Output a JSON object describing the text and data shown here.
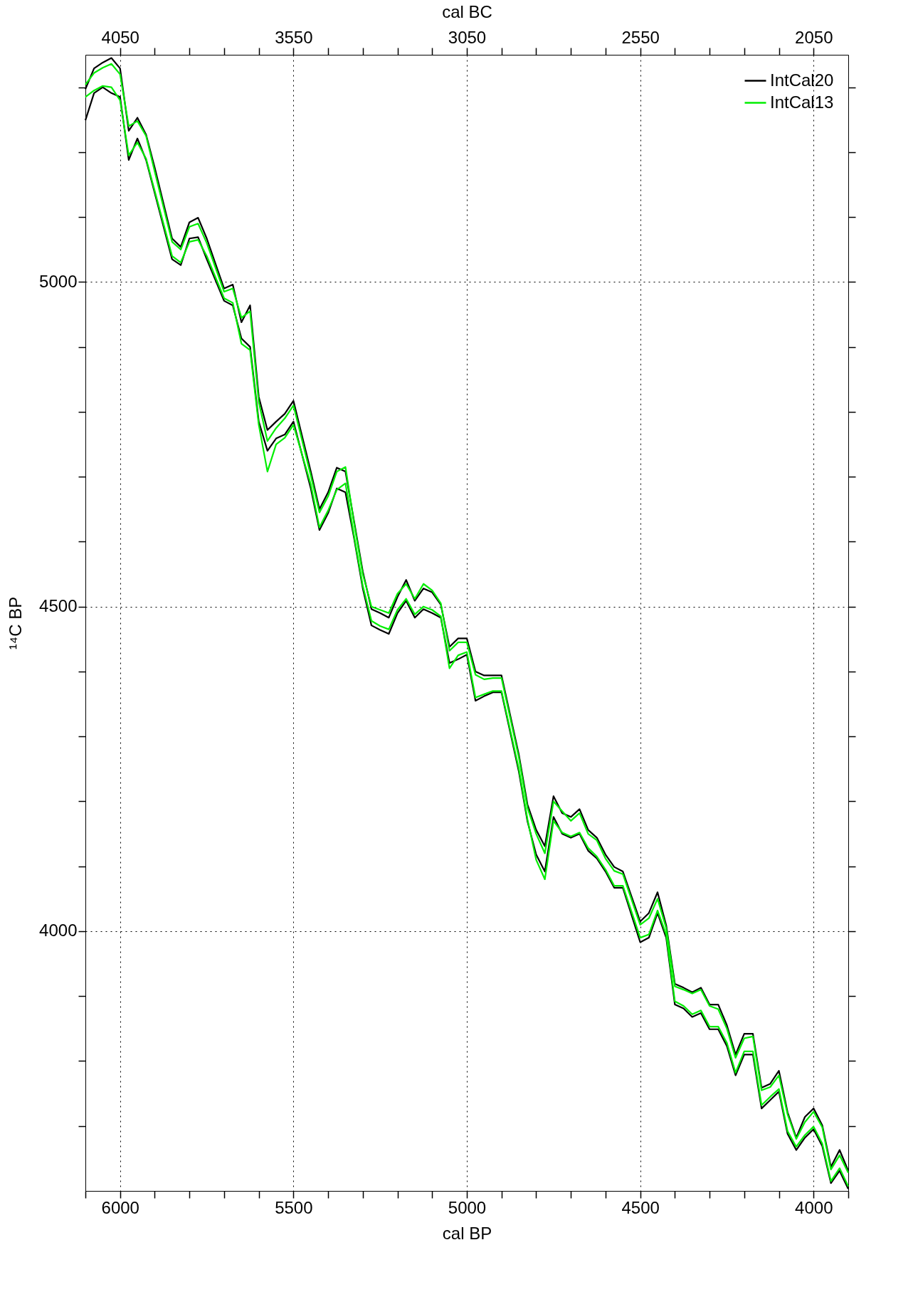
{
  "chart_data": {
    "type": "line",
    "xlabel": "cal BP",
    "x2label": "cal BC",
    "ylabel": "¹⁴C BP",
    "xlim": [
      6100,
      3900
    ],
    "x2lim": [
      4150,
      1950
    ],
    "ylim": [
      3600,
      5350
    ],
    "xticks": [
      {
        "value": 6100,
        "label": null
      },
      6000,
      {
        "value": 5900,
        "label": null
      },
      {
        "value": 5800,
        "label": null
      },
      {
        "value": 5700,
        "label": null
      },
      {
        "value": 5600,
        "label": null
      },
      5500,
      {
        "value": 5400,
        "label": null
      },
      {
        "value": 5300,
        "label": null
      },
      {
        "value": 5200,
        "label": null
      },
      {
        "value": 5100,
        "label": null
      },
      5000,
      {
        "value": 4900,
        "label": null
      },
      {
        "value": 4800,
        "label": null
      },
      {
        "value": 4700,
        "label": null
      },
      {
        "value": 4600,
        "label": null
      },
      4500,
      {
        "value": 4400,
        "label": null
      },
      {
        "value": 4300,
        "label": null
      },
      {
        "value": 4200,
        "label": null
      },
      {
        "value": 4100,
        "label": null
      },
      4000,
      {
        "value": 3900,
        "label": null
      }
    ],
    "x2ticks": [
      4050,
      {
        "value": 3950,
        "label": null
      },
      {
        "value": 3850,
        "label": null
      },
      {
        "value": 3750,
        "label": null
      },
      {
        "value": 3650,
        "label": null
      },
      3550,
      {
        "value": 3450,
        "label": null
      },
      {
        "value": 3350,
        "label": null
      },
      {
        "value": 3250,
        "label": null
      },
      {
        "value": 3150,
        "label": null
      },
      3050,
      {
        "value": 2950,
        "label": null
      },
      {
        "value": 2850,
        "label": null
      },
      {
        "value": 2750,
        "label": null
      },
      {
        "value": 2650,
        "label": null
      },
      2550,
      {
        "value": 2450,
        "label": null
      },
      {
        "value": 2350,
        "label": null
      },
      {
        "value": 2250,
        "label": null
      },
      {
        "value": 2150,
        "label": null
      },
      2050
    ],
    "yticks": [
      {
        "value": 3700,
        "label": null
      },
      {
        "value": 3800,
        "label": null
      },
      {
        "value": 3900,
        "label": null
      },
      4000,
      {
        "value": 4100,
        "label": null
      },
      {
        "value": 4200,
        "label": null
      },
      {
        "value": 4300,
        "label": null
      },
      {
        "value": 4400,
        "label": null
      },
      4500,
      {
        "value": 4600,
        "label": null
      },
      {
        "value": 4700,
        "label": null
      },
      {
        "value": 4800,
        "label": null
      },
      {
        "value": 4900,
        "label": null
      },
      5000,
      {
        "value": 5100,
        "label": null
      },
      {
        "value": 5200,
        "label": null
      },
      {
        "value": 5300,
        "label": null
      }
    ],
    "grid": true,
    "legend": "top right",
    "line_style": "solid",
    "marker": "none",
    "x": [
      6100,
      6075,
      6050,
      6025,
      6000,
      5975,
      5950,
      5925,
      5900,
      5850,
      5825,
      5800,
      5775,
      5750,
      5700,
      5675,
      5650,
      5625,
      5600,
      5575,
      5550,
      5525,
      5500,
      5450,
      5425,
      5400,
      5375,
      5350,
      5325,
      5300,
      5275,
      5250,
      5225,
      5200,
      5175,
      5150,
      5125,
      5100,
      5075,
      5050,
      5025,
      5000,
      4975,
      4950,
      4925,
      4900,
      4850,
      4825,
      4800,
      4775,
      4750,
      4725,
      4700,
      4675,
      4650,
      4625,
      4600,
      4575,
      4550,
      4500,
      4475,
      4450,
      4425,
      4400,
      4375,
      4350,
      4325,
      4300,
      4275,
      4250,
      4225,
      4200,
      4175,
      4150,
      4125,
      4100,
      4075,
      4050,
      4025,
      4000,
      3975,
      3950,
      3925,
      3900
    ],
    "series": [
      {
        "name": "IntCal20",
        "color": "#000000",
        "values": [
          5297,
          5329,
          5338,
          5345,
          5329,
          5233,
          5253,
          5227,
          5176,
          5067,
          5054,
          5092,
          5099,
          5067,
          4990,
          4996,
          4938,
          4964,
          4823,
          4772,
          4785,
          4797,
          4817,
          4708,
          4650,
          4676,
          4714,
          4708,
          4631,
          4554,
          4496,
          4490,
          4483,
          4515,
          4541,
          4509,
          4528,
          4522,
          4503,
          4438,
          4451,
          4451,
          4400,
          4394,
          4394,
          4394,
          4272,
          4195,
          4156,
          4131,
          4208,
          4182,
          4176,
          4188,
          4156,
          4144,
          4118,
          4099,
          4092,
          4015,
          4028,
          4060,
          4009,
          3919,
          3913,
          3906,
          3913,
          3887,
          3887,
          3855,
          3810,
          3842,
          3842,
          3759,
          3765,
          3785,
          3721,
          3682,
          3714,
          3727,
          3701,
          3637,
          3663,
          3631
        ]
      },
      {
        "color": "#000000",
        "values": [
          5249,
          5291,
          5300,
          5291,
          5285,
          5188,
          5221,
          5188,
          5137,
          5035,
          5026,
          5067,
          5069,
          5035,
          4971,
          4964,
          4913,
          4900,
          4785,
          4740,
          4759,
          4765,
          4785,
          4682,
          4618,
          4644,
          4682,
          4676,
          4605,
          4528,
          4471,
          4464,
          4458,
          4490,
          4509,
          4483,
          4496,
          4490,
          4483,
          4413,
          4419,
          4426,
          4355,
          4362,
          4368,
          4368,
          4246,
          4169,
          4118,
          4092,
          4176,
          4150,
          4144,
          4150,
          4124,
          4112,
          4092,
          4067,
          4067,
          3983,
          3990,
          4028,
          3990,
          3887,
          3881,
          3868,
          3874,
          3849,
          3849,
          3823,
          3778,
          3810,
          3810,
          3727,
          3740,
          3753,
          3688,
          3663,
          3682,
          3695,
          3669,
          3612,
          3631,
          3603
        ]
      },
      {
        "name": "IntCal13",
        "color": "#00ee00",
        "values": [
          5304,
          5322,
          5330,
          5336,
          5320,
          5240,
          5248,
          5225,
          5170,
          5062,
          5050,
          5085,
          5090,
          5060,
          4985,
          4990,
          4945,
          4955,
          4815,
          4755,
          4775,
          4790,
          4810,
          4702,
          4645,
          4670,
          4708,
          4715,
          4628,
          4550,
          4500,
          4495,
          4490,
          4520,
          4535,
          4512,
          4535,
          4525,
          4505,
          4432,
          4445,
          4445,
          4395,
          4388,
          4390,
          4390,
          4268,
          4190,
          4150,
          4120,
          4200,
          4185,
          4170,
          4182,
          4150,
          4140,
          4112,
          4093,
          4088,
          4010,
          4020,
          4050,
          4005,
          3915,
          3910,
          3904,
          3910,
          3885,
          3880,
          3850,
          3805,
          3835,
          3838,
          3755,
          3760,
          3778,
          3718,
          3680,
          3706,
          3722,
          3698,
          3633,
          3655,
          3628
        ]
      },
      {
        "color": "#00ee00",
        "values": [
          5285,
          5295,
          5302,
          5300,
          5280,
          5195,
          5215,
          5190,
          5140,
          5040,
          5030,
          5062,
          5065,
          5040,
          4975,
          4968,
          4905,
          4895,
          4780,
          4708,
          4750,
          4760,
          4780,
          4688,
          4622,
          4648,
          4680,
          4690,
          4608,
          4532,
          4478,
          4470,
          4465,
          4495,
          4512,
          4488,
          4500,
          4495,
          4485,
          4405,
          4425,
          4430,
          4360,
          4365,
          4370,
          4370,
          4250,
          4172,
          4110,
          4080,
          4170,
          4152,
          4146,
          4152,
          4128,
          4115,
          4095,
          4070,
          4070,
          3990,
          3995,
          4032,
          3995,
          3892,
          3885,
          3872,
          3878,
          3853,
          3853,
          3828,
          3782,
          3815,
          3815,
          3732,
          3745,
          3757,
          3692,
          3668,
          3686,
          3699,
          3673,
          3615,
          3635,
          3607
        ]
      }
    ]
  }
}
